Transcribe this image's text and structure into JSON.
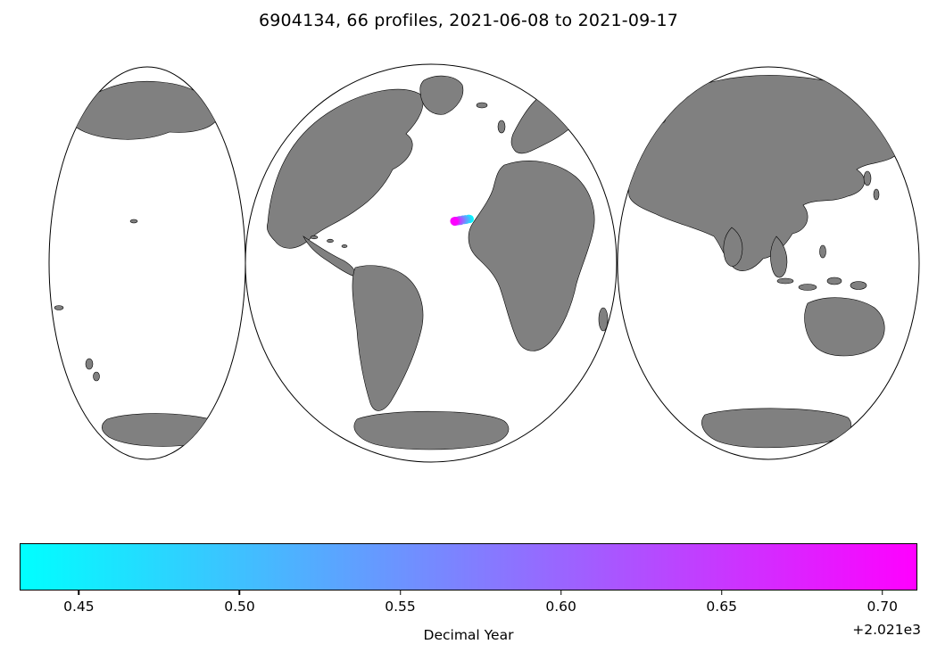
{
  "figure": {
    "title": "6904134, 66 profiles, 2021-06-08 to 2021-09-17",
    "background": "#ffffff",
    "land_color": "#808080",
    "coast_color": "#000000"
  },
  "colorbar": {
    "label": "Decimal Year",
    "offset_text": "+2.021e3",
    "start_color": "#00ffff",
    "end_color": "#ff00ff",
    "ticks": [
      {
        "label": "0.45",
        "pct": 6.6
      },
      {
        "label": "0.50",
        "pct": 24.5
      },
      {
        "label": "0.55",
        "pct": 42.4
      },
      {
        "label": "0.60",
        "pct": 60.3
      },
      {
        "label": "0.65",
        "pct": 78.2
      },
      {
        "label": "0.70",
        "pct": 96.1
      }
    ]
  },
  "chart_data": {
    "type": "scatter",
    "title": "6904134, 66 profiles, 2021-06-08 to 2021-09-17",
    "platform_id": "6904134",
    "n_profiles": 66,
    "date_start": "2021-06-08",
    "date_end": "2021-09-17",
    "map": {
      "projection": "interrupted world map, three lobes, gray land on white ocean",
      "land_color": "#808080",
      "ocean_color": "#ffffff",
      "region_of_points": "tropical North Atlantic, just west of the West African bulge (near Cape Verde)"
    },
    "colorbar": {
      "label": "Decimal Year",
      "offset": "+2.021e3",
      "orientation": "horizontal",
      "tick_values": [
        0.45,
        0.5,
        0.55,
        0.6,
        0.65,
        0.7
      ],
      "vmin": 2021.436,
      "vmax": 2021.712,
      "cmap": "cool (cyan to magenta)"
    },
    "points": [
      {
        "lon": -19.6,
        "lat": 15.25,
        "decimal_year": 2021.437
      },
      {
        "lon": -19.8,
        "lat": 15.3,
        "decimal_year": 2021.455
      },
      {
        "lon": -20.0,
        "lat": 15.2,
        "decimal_year": 2021.473
      },
      {
        "lon": -20.2,
        "lat": 15.1,
        "decimal_year": 2021.491
      },
      {
        "lon": -20.4,
        "lat": 15.22,
        "decimal_year": 2021.509
      },
      {
        "lon": -20.6,
        "lat": 15.05,
        "decimal_year": 2021.527
      },
      {
        "lon": -20.9,
        "lat": 15.15,
        "decimal_year": 2021.545
      },
      {
        "lon": -21.1,
        "lat": 15.0,
        "decimal_year": 2021.564
      },
      {
        "lon": -21.3,
        "lat": 14.9,
        "decimal_year": 2021.582
      },
      {
        "lon": -21.5,
        "lat": 15.05,
        "decimal_year": 2021.6
      },
      {
        "lon": -21.7,
        "lat": 14.85,
        "decimal_year": 2021.618
      },
      {
        "lon": -21.9,
        "lat": 14.95,
        "decimal_year": 2021.636
      },
      {
        "lon": -22.1,
        "lat": 14.8,
        "decimal_year": 2021.655
      },
      {
        "lon": -22.3,
        "lat": 14.9,
        "decimal_year": 2021.673
      },
      {
        "lon": -22.4,
        "lat": 14.75,
        "decimal_year": 2021.691
      },
      {
        "lon": -22.5,
        "lat": 14.85,
        "decimal_year": 2021.71
      }
    ]
  }
}
